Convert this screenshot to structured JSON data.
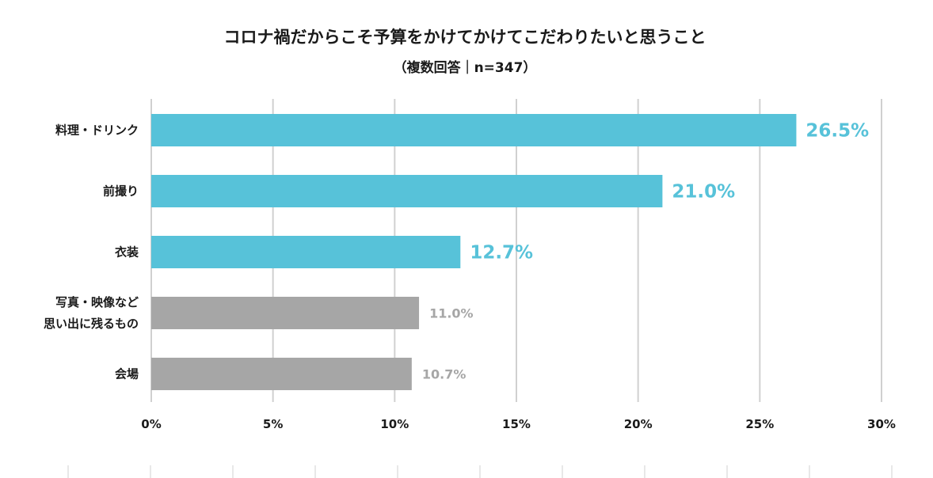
{
  "chart_data": {
    "type": "bar",
    "orientation": "horizontal",
    "title": "コロナ禍だからこそ予算をかけてかけてこだわりたいと思うこと",
    "subtitle": "（複数回答｜n=347）",
    "categories": [
      [
        "料理・ドリンク"
      ],
      [
        "前撮り"
      ],
      [
        "衣装"
      ],
      [
        "写真・映像など",
        "思い出に残るもの"
      ],
      [
        "会場"
      ]
    ],
    "values": [
      26.5,
      21.0,
      12.7,
      11.0,
      10.7
    ],
    "value_labels": [
      "26.5%",
      "21.0%",
      "12.7%",
      "11.0%",
      "10.7%"
    ],
    "highlight": [
      true,
      true,
      true,
      false,
      false
    ],
    "xlim": [
      0,
      30
    ],
    "xticks": [
      0,
      5,
      10,
      15,
      20,
      25,
      30
    ],
    "xtick_labels": [
      "0%",
      "5%",
      "10%",
      "15%",
      "20%",
      "25%",
      "30%"
    ],
    "grid": true,
    "colors": {
      "highlight": "#57c2d9",
      "other": "#a6a6a6",
      "grid": "#d0d0d0"
    }
  }
}
